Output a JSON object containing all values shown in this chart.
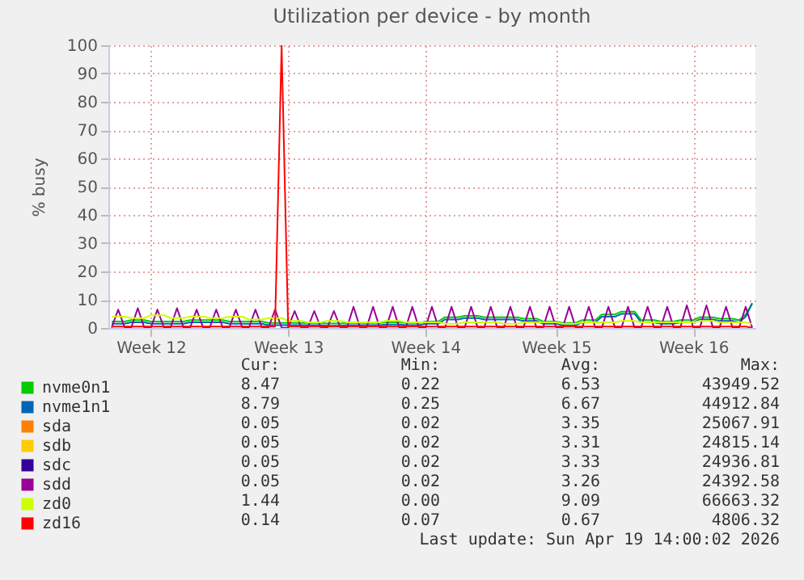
{
  "chart_data": {
    "type": "line",
    "title": "Utilization per device - by month",
    "ylabel": "% busy",
    "categories": [
      null,
      null,
      null,
      null,
      null,
      null,
      "Week 12",
      null,
      null,
      null,
      null,
      null,
      null,
      null,
      null,
      null,
      null,
      null,
      null,
      null,
      null,
      null,
      null,
      null,
      null,
      null,
      null,
      "Week 13",
      null,
      null,
      null,
      null,
      null,
      null,
      null,
      null,
      null,
      null,
      null,
      null,
      null,
      null,
      null,
      null,
      null,
      null,
      null,
      null,
      "Week 14",
      null,
      null,
      null,
      null,
      null,
      null,
      null,
      null,
      null,
      null,
      null,
      null,
      null,
      null,
      null,
      null,
      null,
      null,
      null,
      "Week 15",
      null,
      null,
      null,
      null,
      null,
      null,
      null,
      null,
      null,
      null,
      null,
      null,
      null,
      null,
      null,
      null,
      null,
      null,
      null,
      null,
      "Week 16",
      null,
      null,
      null,
      null,
      null,
      null,
      null,
      null,
      null
    ],
    "ylim": [
      0,
      100
    ],
    "yticks": [
      0,
      10,
      20,
      30,
      40,
      50,
      60,
      70,
      80,
      90,
      100
    ],
    "grid": true,
    "legend": "bottom left",
    "marker": "none",
    "line_style": "solid",
    "series": [
      {
        "name": "nvme0n1",
        "color": "#00cc00",
        "values": [
          2.3,
          2.3,
          2.3,
          2.8,
          2.8,
          2.8,
          2.3,
          2.3,
          2.3,
          2.3,
          2.3,
          2.3,
          2.8,
          2.8,
          2.8,
          2.8,
          2.8,
          2.8,
          2.3,
          2.3,
          2.3,
          2.3,
          2.3,
          2.3,
          1.8,
          1.8,
          1.8,
          1.8,
          1.8,
          1.8,
          1.8,
          1.8,
          1.8,
          1.6,
          1.6,
          1.6,
          1.8,
          1.8,
          1.8,
          1.8,
          1.8,
          1.8,
          2,
          2,
          2,
          1.8,
          1.8,
          1.8,
          2.3,
          2.3,
          2.3,
          3.8,
          3.8,
          3.8,
          4.3,
          4.3,
          4.3,
          3.8,
          3.8,
          3.8,
          3.8,
          3.8,
          3.8,
          3.3,
          3.3,
          3.3,
          2.3,
          2.3,
          2.3,
          1.8,
          1.8,
          1.8,
          2.8,
          2.8,
          2.8,
          4.8,
          4.8,
          4.8,
          5.8,
          5.8,
          5.8,
          2.8,
          2.8,
          2.8,
          2.3,
          2.3,
          2.3,
          2.8,
          2.8,
          2.8,
          3.8,
          3.8,
          3.8,
          3.3,
          3.3,
          3.3,
          2.8,
          4.8,
          8.5
        ]
      },
      {
        "name": "nvme1n1",
        "color": "#0066b3",
        "values": [
          1.5,
          1.5,
          1.5,
          2,
          2,
          2,
          1.5,
          1.5,
          1.5,
          1.5,
          1.5,
          1.5,
          2,
          2,
          2,
          2,
          2,
          2,
          1.5,
          1.5,
          1.5,
          1.5,
          1.5,
          1.5,
          1,
          1,
          1,
          1,
          1,
          1,
          1,
          1,
          1,
          0.8,
          0.8,
          0.8,
          1,
          1,
          1,
          1,
          1,
          1,
          1.2,
          1.2,
          1.2,
          1,
          1,
          1,
          1.5,
          1.5,
          1.5,
          3,
          3,
          3,
          3.5,
          3.5,
          3.5,
          3,
          3,
          3,
          3,
          3,
          3,
          2.5,
          2.5,
          2.5,
          1.5,
          1.5,
          1.5,
          1,
          1,
          1,
          2,
          2,
          2,
          4,
          4,
          4,
          5,
          5,
          5,
          2,
          2,
          2,
          1.5,
          1.5,
          1.5,
          2,
          2,
          2,
          3,
          3,
          3,
          2.5,
          2.5,
          2.5,
          2,
          4,
          8.8
        ]
      },
      {
        "name": "sda",
        "color": "#ff8000",
        "values": [
          null,
          null,
          null,
          null,
          null,
          null,
          null,
          null,
          null,
          null,
          null,
          null,
          null,
          null,
          null,
          null,
          null,
          null,
          null,
          null,
          null,
          null,
          null,
          null,
          null,
          null,
          null,
          null,
          null,
          null,
          null,
          null,
          null,
          null,
          null,
          null,
          null,
          null,
          null,
          null,
          null,
          null,
          null,
          null,
          null,
          null,
          null,
          null,
          null,
          null,
          null,
          null,
          null,
          null,
          null,
          null,
          null,
          null,
          null,
          null,
          null,
          null,
          null,
          null,
          null,
          null,
          null,
          null,
          null,
          null,
          null,
          null,
          null,
          null,
          null,
          null,
          null,
          null,
          null,
          null,
          null,
          null,
          null,
          null,
          null,
          null,
          null,
          null,
          null,
          null,
          null,
          null,
          null,
          null,
          null,
          null,
          null,
          null,
          null
        ]
      },
      {
        "name": "sdb",
        "color": "#ffcc00",
        "values": [
          null,
          null,
          null,
          null,
          null,
          null,
          null,
          null,
          null,
          null,
          null,
          null,
          null,
          null,
          null,
          null,
          null,
          null,
          null,
          null,
          null,
          null,
          null,
          null,
          null,
          null,
          null,
          null,
          null,
          null,
          null,
          null,
          null,
          null,
          null,
          null,
          null,
          null,
          null,
          null,
          null,
          null,
          null,
          null,
          null,
          null,
          null,
          null,
          null,
          null,
          null,
          null,
          null,
          null,
          null,
          null,
          null,
          null,
          null,
          null,
          null,
          null,
          null,
          null,
          null,
          null,
          null,
          null,
          null,
          null,
          null,
          null,
          null,
          null,
          null,
          null,
          null,
          null,
          null,
          null,
          null,
          null,
          null,
          null,
          null,
          null,
          null,
          null,
          null,
          null,
          null,
          null,
          null,
          null,
          null,
          null,
          null,
          null,
          null
        ]
      },
      {
        "name": "sdc",
        "color": "#330099",
        "values": [
          null,
          null,
          null,
          null,
          null,
          null,
          null,
          null,
          null,
          null,
          null,
          null,
          null,
          null,
          null,
          null,
          null,
          null,
          null,
          null,
          null,
          null,
          null,
          null,
          null,
          null,
          null,
          null,
          null,
          null,
          null,
          null,
          null,
          null,
          null,
          null,
          null,
          null,
          null,
          null,
          null,
          null,
          null,
          null,
          null,
          null,
          null,
          null,
          null,
          null,
          null,
          null,
          null,
          null,
          null,
          null,
          null,
          null,
          null,
          null,
          null,
          null,
          null,
          null,
          null,
          null,
          null,
          null,
          null,
          null,
          null,
          null,
          null,
          null,
          null,
          null,
          null,
          null,
          null,
          null,
          null,
          null,
          null,
          null,
          null,
          null,
          null,
          null,
          null,
          null,
          null,
          null,
          null,
          null,
          null,
          null,
          null,
          null,
          null
        ]
      },
      {
        "name": "sdd",
        "color": "#990099",
        "values": [
          0.1,
          6.5,
          0.1,
          0.1,
          7,
          0.1,
          0.1,
          6.5,
          0.1,
          0.1,
          7,
          0.1,
          0.1,
          6.5,
          0.1,
          0.1,
          6.5,
          0.1,
          0.1,
          6.5,
          0.1,
          0.1,
          6.5,
          0.1,
          0.1,
          6.5,
          0.1,
          0.1,
          6,
          0.1,
          0.1,
          6,
          0.1,
          0.1,
          6,
          0.1,
          0.1,
          7.5,
          0.1,
          0.1,
          7.5,
          0.1,
          0.1,
          7.5,
          0.1,
          0.1,
          7.5,
          0.1,
          0.1,
          7.5,
          0.1,
          0.1,
          7.5,
          0.1,
          0.1,
          7.5,
          0.1,
          0.1,
          7.5,
          0.1,
          0.1,
          7.5,
          0.1,
          0.1,
          7.5,
          0.1,
          0.1,
          7.5,
          0.1,
          0.1,
          7.5,
          0.1,
          0.1,
          7.5,
          0.1,
          0.1,
          7.5,
          0.1,
          0.1,
          7.5,
          0.1,
          0.1,
          7.5,
          0.1,
          0.1,
          7.5,
          0.1,
          0.1,
          8,
          0.1,
          0.1,
          8,
          0.1,
          0.1,
          7.5,
          0.1,
          0.1,
          7.5,
          0.1
        ]
      },
      {
        "name": "zd0",
        "color": "#ccff00",
        "values": [
          4,
          4,
          4,
          3.5,
          3.5,
          3.5,
          4.5,
          4.5,
          4.5,
          3.5,
          3.5,
          3.5,
          4,
          4,
          4,
          3.5,
          3.5,
          3.5,
          4,
          4,
          4,
          3,
          3,
          3,
          3.5,
          3.5,
          3.5,
          2.5,
          2.5,
          2.5,
          2,
          2,
          2,
          2.5,
          2.5,
          2.5,
          2,
          2,
          2,
          2,
          2,
          2,
          2.5,
          2.5,
          2.5,
          2,
          2,
          2,
          2,
          2,
          2,
          1.5,
          1.5,
          1.5,
          2,
          2,
          2,
          2,
          2,
          2,
          1.5,
          1.5,
          1.5,
          2,
          2,
          2,
          2,
          2,
          2,
          1.5,
          1.5,
          1.5,
          2,
          2,
          2,
          2,
          2,
          2,
          2.5,
          2.5,
          2.5,
          2,
          2,
          2,
          2,
          2,
          2,
          2,
          2,
          2,
          2.5,
          2.5,
          2.5,
          2,
          2,
          2,
          2,
          2,
          1.4
        ]
      },
      {
        "name": "zd16",
        "color": "#ff0000",
        "values": [
          0.5,
          0.5,
          0.5,
          0.5,
          0.5,
          0.5,
          0.5,
          0.5,
          0.5,
          0.5,
          0.5,
          0.5,
          0.5,
          0.5,
          0.5,
          0.5,
          0.5,
          0.5,
          0.5,
          0.5,
          0.5,
          0.5,
          0.5,
          0.5,
          0.5,
          0.5,
          100,
          0.5,
          0.5,
          0.5,
          0.5,
          0.5,
          0.5,
          0.5,
          0.5,
          0.5,
          0.5,
          0.5,
          0.5,
          0.5,
          0.5,
          0.5,
          0.5,
          0.5,
          0.5,
          0.5,
          0.5,
          0.5,
          0.5,
          0.5,
          0.5,
          0.5,
          0.5,
          0.5,
          0.5,
          0.5,
          0.5,
          0.5,
          0.5,
          0.5,
          0.5,
          0.5,
          0.5,
          0.5,
          0.5,
          0.5,
          0.5,
          0.5,
          0.5,
          0.5,
          0.5,
          0.5,
          0.5,
          0.5,
          0.5,
          0.5,
          0.5,
          0.5,
          0.5,
          0.5,
          0.5,
          0.5,
          0.5,
          0.5,
          0.5,
          0.5,
          0.5,
          0.5,
          0.5,
          0.5,
          0.5,
          0.5,
          0.5,
          0.5,
          0.5,
          0.5,
          0.5,
          0.5,
          0.1
        ]
      }
    ],
    "annotations": [
      "Cur:",
      "Min:",
      "Avg:",
      "Max:",
      "8.47",
      "0.22",
      "6.53",
      "43949.52",
      "8.79",
      "0.25",
      "6.67",
      "44912.84",
      "0.05",
      "0.02",
      "3.35",
      "25067.91",
      "0.05",
      "0.02",
      "3.31",
      "24815.14",
      "0.05",
      "0.02",
      "3.33",
      "24936.81",
      "0.05",
      "0.02",
      "3.26",
      "24392.58",
      "1.44",
      "0.00",
      "9.09",
      "66663.32",
      "0.14",
      "0.07",
      "0.67",
      "4806.32",
      "Last update: Sun Apr 19 14:00:02 2026"
    ]
  }
}
